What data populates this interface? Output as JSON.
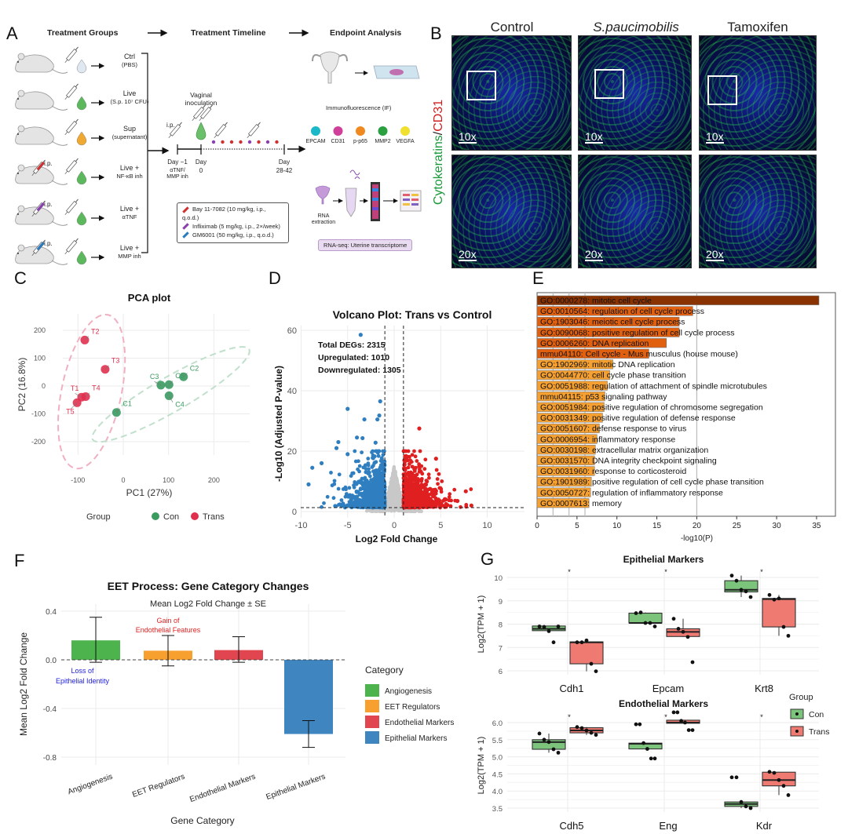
{
  "panel_labels": {
    "a": "A",
    "b": "B",
    "c": "C",
    "d": "D",
    "e": "E",
    "f": "F",
    "g": "G"
  },
  "panel_a": {
    "headers": [
      "Treatment Groups",
      "Treatment Timeline",
      "Endpoint Analysis"
    ],
    "groups": [
      {
        "name": "Ctrl",
        "sub": "(PBS)",
        "drop_color": "#dfe8f0",
        "pretreat": ""
      },
      {
        "name": "Live",
        "sub": "(S.p. 10⁷ CFU)",
        "drop_color": "#5cb85c",
        "pretreat": ""
      },
      {
        "name": "Sup",
        "sub": "(supernatant)",
        "drop_color": "#f0a830",
        "pretreat": ""
      },
      {
        "name": "Live +",
        "sub": "NF-κB inh",
        "drop_color": "#5cb85c",
        "pretreat": "#d03030"
      },
      {
        "name": "Live +",
        "sub": "αTNF",
        "drop_color": "#5cb85c",
        "pretreat": "#8a3fb0"
      },
      {
        "name": "Live +",
        "sub": "MMP inh",
        "drop_color": "#5cb85c",
        "pretreat": "#2a7ac0"
      }
    ],
    "ip_label": "i.p.",
    "timeline": {
      "inoculation": "Vaginal inoculation",
      "ip": "i.p.",
      "day_m1": "Day −1",
      "day_m1_sub": "αTNF/ MMP inh",
      "day0": "Day",
      "day0_num": "0",
      "day_end": "Day",
      "day_end_num": "28-42"
    },
    "legend": [
      {
        "text": "Bay 11-7082 (10 mg/kg, i.p., q.o.d.)",
        "color": "#d03030"
      },
      {
        "text": "Infliximab (5 mg/kg, i.p., 2×/week)",
        "color": "#8a3fb0"
      },
      {
        "text": "GM6001 (50 mg/kg, i.p., q.o.d.)",
        "color": "#2a7ac0"
      }
    ],
    "if_title": "Immunofluorescence (IF)",
    "markers": [
      {
        "name": "EPCAM",
        "color": "#1ab8c8"
      },
      {
        "name": "CD31",
        "color": "#d0409a"
      },
      {
        "name": "p-p65",
        "color": "#f08a20"
      },
      {
        "name": "MMP2",
        "color": "#2aa040"
      },
      {
        "name": "VEGFA",
        "color": "#f0e030"
      }
    ],
    "rna_extraction": "RNA extraction",
    "rnaseq": "RNA-seq: Uterine transcriptome"
  },
  "panel_b": {
    "columns": [
      "Control",
      "S.paucimobilis",
      "Tamoxifen"
    ],
    "stain_green": "Cytokeratins",
    "stain_sep": "/",
    "stain_red": "CD31",
    "mags": [
      "10x",
      "20x"
    ]
  },
  "chart_data": [
    {
      "id": "C",
      "type": "scatter",
      "title": "PCA plot",
      "xlabel": "PC1 (27%)",
      "ylabel": "PC2 (16.8%)",
      "xlim": [
        -150,
        260
      ],
      "ylim": [
        -260,
        250
      ],
      "xticks": [
        -100,
        0,
        100,
        200
      ],
      "yticks": [
        -200,
        -100,
        0,
        100,
        200
      ],
      "legend": {
        "title": "Group",
        "placement": "bottom",
        "entries": [
          {
            "name": "Con",
            "color": "#3a9a60"
          },
          {
            "name": "Trans",
            "color": "#e0304f"
          }
        ]
      },
      "points": [
        {
          "label": "T1",
          "x": -92,
          "y": -40,
          "group": "Trans"
        },
        {
          "label": "T2",
          "x": -85,
          "y": 165,
          "group": "Trans"
        },
        {
          "label": "T3",
          "x": -40,
          "y": 60,
          "group": "Trans"
        },
        {
          "label": "T4",
          "x": -83,
          "y": -38,
          "group": "Trans"
        },
        {
          "label": "T5",
          "x": -102,
          "y": -60,
          "group": "Trans"
        },
        {
          "label": "C1",
          "x": -15,
          "y": -95,
          "group": "Con"
        },
        {
          "label": "C2",
          "x": 133,
          "y": 33,
          "group": "Con"
        },
        {
          "label": "C3",
          "x": 83,
          "y": 3,
          "group": "Con"
        },
        {
          "label": "C4",
          "x": 101,
          "y": -35,
          "group": "Con"
        },
        {
          "label": "C5",
          "x": 101,
          "y": 5,
          "group": "Con"
        }
      ]
    },
    {
      "id": "D",
      "type": "scatter",
      "title": "Volcano Plot: Trans vs Control",
      "xlabel": "Log2 Fold Change",
      "ylabel": "-Log10 (Adjusted P-value)",
      "xlim": [
        -10.5,
        13
      ],
      "ylim": [
        -1,
        62
      ],
      "xticks": [
        -10,
        -5,
        0,
        5,
        10
      ],
      "yticks": [
        0,
        20,
        40,
        60
      ],
      "thresholds": {
        "log2fc": 1,
        "neglog10p": 1.3
      },
      "annotations": [
        "Total DEGs: 2315",
        "Upregulated: 1010",
        "Downregulated: 1305"
      ],
      "counts": {
        "total": 2315,
        "up": 1010,
        "down": 1305
      },
      "colors": {
        "up": "#e02020",
        "down": "#2f7fc0",
        "ns": "#c8c8c8"
      },
      "outliers": [
        {
          "x": -3.6,
          "y": 58.5
        },
        {
          "x": -1.5,
          "y": 36.5
        },
        {
          "x": -5,
          "y": 34
        },
        {
          "x": -1.6,
          "y": 31.8
        },
        {
          "x": -3.2,
          "y": 30.5
        },
        {
          "x": -1.8,
          "y": 30.5
        },
        {
          "x": -4,
          "y": 24.5
        },
        {
          "x": -3.4,
          "y": 24.3
        },
        {
          "x": -2,
          "y": 22.8
        },
        {
          "x": -6,
          "y": 23
        },
        {
          "x": -6.2,
          "y": 21
        },
        {
          "x": -5,
          "y": 19
        },
        {
          "x": -9.2,
          "y": 9
        },
        {
          "x": -8.8,
          "y": 14.5
        },
        {
          "x": -7.8,
          "y": 16
        },
        {
          "x": 2.7,
          "y": 27.5
        },
        {
          "x": 4.5,
          "y": 17.5
        },
        {
          "x": 7.7,
          "y": 6.7
        },
        {
          "x": 8.3,
          "y": 2
        },
        {
          "x": 6.8,
          "y": 3.5
        }
      ]
    },
    {
      "id": "E",
      "type": "bar",
      "orientation": "horizontal",
      "xlabel": "-log10(P)",
      "xlim": [
        0,
        36
      ],
      "xticks": [
        0,
        5,
        10,
        15,
        20,
        25,
        30,
        35
      ],
      "categories": [
        "GO:0000278: mitotic cell cycle",
        "GO:0010564: regulation of cell cycle process",
        "GO:1903046: meiotic cell cycle process",
        "GO:0090068: positive regulation of cell cycle process",
        "GO:0006260: DNA replication",
        "mmu04110: Cell cycle - Mus musculus (house mouse)",
        "GO:1902969: mitotic DNA replication",
        "GO:0044770: cell cycle phase transition",
        "GO:0051988: regulation of attachment of spindle microtubules",
        "mmu04115: p53 signaling pathway",
        "GO:0051984: positive regulation of chromosome segregation",
        "GO:0031349: positive regulation of defense response",
        "GO:0051607: defense response to virus",
        "GO:0006954: inflammatory response",
        "GO:0030198: extracellular matrix organization",
        "GO:0031570: DNA integrity checkpoint signaling",
        "GO:0031960: response to corticosteroid",
        "GO:1901989: positive regulation of cell cycle phase transition",
        "GO:0050727: regulation of inflammatory response",
        "GO:0007613: memory"
      ],
      "values": [
        35.3,
        19.5,
        17.8,
        17.8,
        16.2,
        14.0,
        9.5,
        9.1,
        8.8,
        8.5,
        8.4,
        8.2,
        7.8,
        7.5,
        7.3,
        7.2,
        7.2,
        6.8,
        6.7,
        6.5
      ],
      "colors": [
        "#8b3300",
        "#e06010",
        "#e06010",
        "#e06010",
        "#e06010",
        "#e06010",
        "#f5a030",
        "#f5a030",
        "#f5a030",
        "#f5a030",
        "#f5a030",
        "#f5a030",
        "#f5a030",
        "#f5a030",
        "#f5a030",
        "#f5a030",
        "#f5a030",
        "#f5a030",
        "#f5a030",
        "#f5a030"
      ]
    },
    {
      "id": "F",
      "type": "bar",
      "title": "EET Process: Gene Category Changes",
      "subtitle": "Mean Log2 Fold Change ± SE",
      "xlabel": "Gene Category",
      "ylabel": "Mean Log2 Fold Change",
      "ylim": [
        -0.85,
        0.45
      ],
      "yticks": [
        -0.8,
        -0.4,
        0.0,
        0.4
      ],
      "ytick_labels": [
        "-0.8",
        "-0.4",
        "0.0",
        "0.4"
      ],
      "categories": [
        "Angiogenesis",
        "EET Regulators",
        "Endothelial Markers",
        "Epithelial Markers"
      ],
      "values": [
        0.16,
        0.075,
        0.08,
        -0.61
      ],
      "err_low": [
        -0.02,
        -0.05,
        -0.02,
        -0.72
      ],
      "err_high": [
        0.35,
        0.2,
        0.19,
        -0.5
      ],
      "colors": [
        "#4db34d",
        "#f7a030",
        "#e04550",
        "#3f86c0"
      ],
      "legend": {
        "title": "Category",
        "placement": "right"
      },
      "annotations": [
        {
          "text": "Gain of",
          "color": "#e02020"
        },
        {
          "text": "Endothelial Features",
          "color": "#e02020"
        },
        {
          "text": "Loss of",
          "color": "#2020e0"
        },
        {
          "text": "Epithelial Identity",
          "color": "#2020e0"
        }
      ]
    },
    {
      "id": "G",
      "type": "box",
      "ylabel": "Log2(TPM + 1)",
      "legend": {
        "title": "Group",
        "placement": "right",
        "entries": [
          {
            "name": "Con",
            "color": "#7cc47c"
          },
          {
            "name": "Trans",
            "color": "#ef7a72"
          }
        ]
      },
      "panels": [
        {
          "title": "Epithelial Markers",
          "ylim": [
            5.85,
            10.2
          ],
          "yticks": [
            6,
            7,
            8,
            9,
            10
          ],
          "sig": "*",
          "genes": [
            {
              "name": "Cdh1",
              "con": {
                "q1": 7.72,
                "med": 7.8,
                "q3": 7.92,
                "lo": 7.7,
                "hi": 7.92,
                "pts": [
                  7.9,
                  7.88,
                  7.7,
                  7.22,
                  7.9
                ]
              },
              "trans": {
                "q1": 6.3,
                "med": 7.22,
                "q3": 7.24,
                "lo": 5.98,
                "hi": 7.3,
                "pts": [
                  7.22,
                  7.22,
                  7.3,
                  6.3,
                  5.98
                ]
              }
            },
            {
              "name": "Epcam",
              "con": {
                "q1": 8.05,
                "med": 8.05,
                "q3": 8.47,
                "lo": 8.05,
                "hi": 8.5,
                "pts": [
                  8.47,
                  8.5,
                  8.05,
                  8.05,
                  7.9
                ]
              },
              "trans": {
                "q1": 7.47,
                "med": 7.67,
                "q3": 7.8,
                "lo": 7.45,
                "hi": 8.23,
                "pts": [
                  8.23,
                  7.8,
                  7.67,
                  7.45,
                  6.37
                ]
              }
            },
            {
              "name": "Krt8",
              "con": {
                "q1": 9.38,
                "med": 9.47,
                "q3": 9.86,
                "lo": 9.16,
                "hi": 10.08,
                "pts": [
                  10.08,
                  9.86,
                  9.47,
                  9.4,
                  9.16
                ]
              },
              "trans": {
                "q1": 7.88,
                "med": 9.07,
                "q3": 9.1,
                "lo": 7.5,
                "hi": 9.25,
                "pts": [
                  9.25,
                  9.05,
                  9.1,
                  7.88,
                  7.5
                ]
              }
            }
          ]
        },
        {
          "title": "Endothelial Markers",
          "ylim": [
            3.4,
            6.35
          ],
          "yticks": [
            3.5,
            4.0,
            4.5,
            5.0,
            5.5,
            6.0
          ],
          "ytick_labels": [
            "3.5",
            "4.0",
            "4.5",
            "5.0",
            "5.5",
            "6.0"
          ],
          "sig": "*",
          "genes": [
            {
              "name": "Cdh5",
              "con": {
                "q1": 5.22,
                "med": 5.43,
                "q3": 5.5,
                "lo": 5.12,
                "hi": 5.68,
                "pts": [
                  5.68,
                  5.5,
                  5.43,
                  5.22,
                  5.12
                ]
              },
              "trans": {
                "q1": 5.7,
                "med": 5.77,
                "q3": 5.85,
                "lo": 5.64,
                "hi": 5.87,
                "pts": [
                  5.87,
                  5.84,
                  5.77,
                  5.7,
                  5.64
                ]
              }
            },
            {
              "name": "Eng",
              "con": {
                "q1": 5.23,
                "med": 5.38,
                "q3": 5.4,
                "lo": 5.23,
                "hi": 5.4,
                "pts": [
                  5.95,
                  5.95,
                  5.4,
                  5.23,
                  4.95,
                  4.95
                ]
              },
              "trans": {
                "q1": 5.98,
                "med": 6.0,
                "q3": 6.07,
                "lo": 5.98,
                "hi": 6.07,
                "pts": [
                  6.3,
                  6.3,
                  6.05,
                  6.0,
                  5.78,
                  5.78
                ]
              }
            },
            {
              "name": "Kdr",
              "con": {
                "q1": 3.55,
                "med": 3.62,
                "q3": 3.68,
                "lo": 3.5,
                "hi": 3.68,
                "pts": [
                  4.4,
                  4.4,
                  3.68,
                  3.55,
                  3.5
                ]
              },
              "trans": {
                "q1": 4.15,
                "med": 4.32,
                "q3": 4.55,
                "lo": 3.88,
                "hi": 4.56,
                "pts": [
                  4.56,
                  4.53,
                  4.32,
                  4.15,
                  3.88
                ]
              }
            }
          ]
        }
      ]
    }
  ]
}
